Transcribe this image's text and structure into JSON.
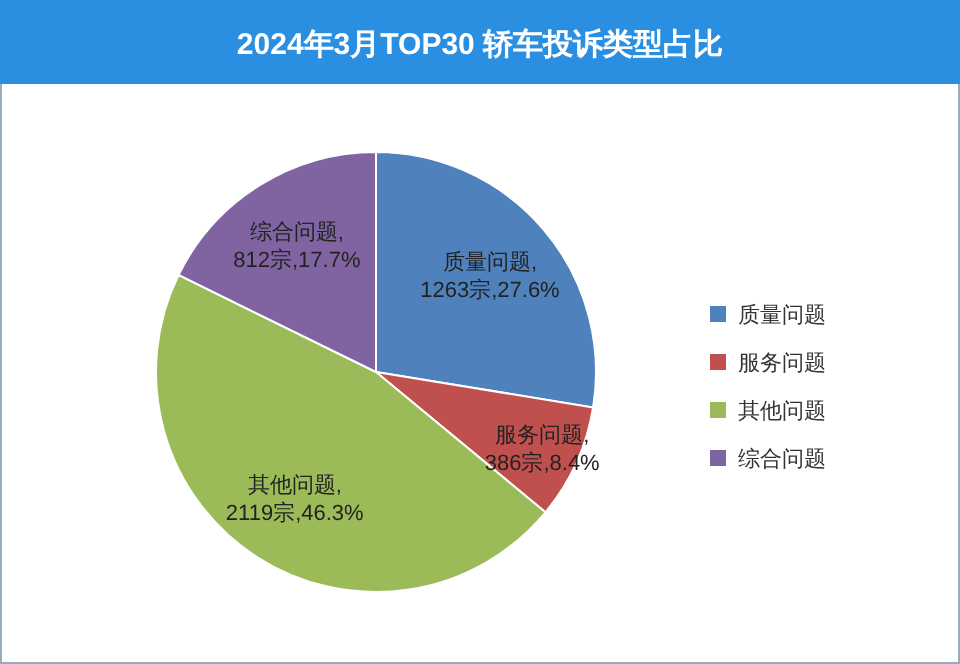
{
  "chart_data": {
    "type": "pie",
    "title": "2024年3月TOP30 轿车投诉类型占比",
    "categories": [
      "质量问题",
      "服务问题",
      "其他问题",
      "综合问题"
    ],
    "values": [
      1263,
      386,
      2119,
      812
    ],
    "colors": [
      "#4f81bd",
      "#c0504d",
      "#9bbb59",
      "#8064a2"
    ],
    "value_labels": [
      "质量问题,\n1263宗,27.6%",
      "服务问题,\n386宗,8.4%",
      "其他问题,\n2119宗,46.3%",
      "综合问题,\n812宗,17.7%"
    ],
    "legend": "right"
  }
}
